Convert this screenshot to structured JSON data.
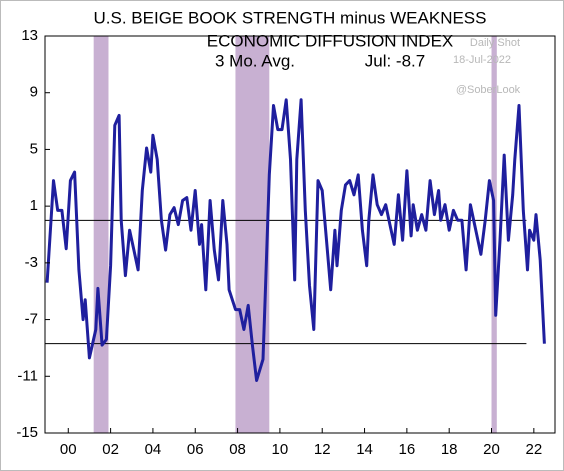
{
  "chart_data": {
    "type": "line",
    "title": "U.S. BEIGE BOOK STRENGTH minus WEAKNESS",
    "subtitle": "ECONOMIC DIFFUSION INDEX",
    "annotations": [
      "3 Mo. Avg.",
      "Jul: -8.7",
      "Daily Shot",
      "18-Jul-2022",
      "@SoberLook"
    ],
    "x": [
      1999.0,
      1999.3,
      1999.5,
      1999.7,
      1999.9,
      2000.1,
      2000.3,
      2000.5,
      2000.7,
      2000.8,
      2001.0,
      2001.3,
      2001.4,
      2001.6,
      2001.8,
      2002.0,
      2002.2,
      2002.4,
      2002.5,
      2002.7,
      2002.9,
      2003.1,
      2003.3,
      2003.5,
      2003.7,
      2003.9,
      2004.0,
      2004.2,
      2004.4,
      2004.6,
      2004.8,
      2005.0,
      2005.2,
      2005.4,
      2005.6,
      2005.8,
      2006.0,
      2006.2,
      2006.3,
      2006.5,
      2006.7,
      2006.9,
      2007.1,
      2007.3,
      2007.5,
      2007.6,
      2007.9,
      2008.1,
      2008.3,
      2008.5,
      2008.7,
      2008.9,
      2009.2,
      2009.3,
      2009.5,
      2009.7,
      2009.9,
      2010.1,
      2010.3,
      2010.5,
      2010.7,
      2010.8,
      2011.0,
      2011.2,
      2011.4,
      2011.6,
      2011.8,
      2012.0,
      2012.2,
      2012.4,
      2012.6,
      2012.7,
      2012.9,
      2013.1,
      2013.3,
      2013.5,
      2013.7,
      2013.9,
      2014.1,
      2014.2,
      2014.4,
      2014.6,
      2014.8,
      2015.0,
      2015.2,
      2015.4,
      2015.6,
      2015.8,
      2016.0,
      2016.2,
      2016.3,
      2016.5,
      2016.7,
      2016.9,
      2017.1,
      2017.3,
      2017.5,
      2017.6,
      2017.8,
      2018.0,
      2018.2,
      2018.4,
      2018.6,
      2018.8,
      2019.0,
      2019.2,
      2019.3,
      2019.5,
      2019.7,
      2019.9,
      2020.1,
      2020.2,
      2020.4,
      2020.6,
      2020.8,
      2021.0,
      2021.1,
      2021.3,
      2021.5,
      2021.7,
      2021.8,
      2022.0,
      2022.1,
      2022.3,
      2022.5
    ],
    "series": [
      {
        "name": "Strength minus Weakness",
        "color": "#1f1f9e",
        "values": [
          -4.4,
          2.8,
          0.7,
          0.7,
          -2,
          2.8,
          3.4,
          -3.5,
          -7,
          -5.6,
          -9.7,
          -7.7,
          -4.8,
          -8.8,
          -8.4,
          -3.2,
          6.7,
          7.4,
          0,
          -3.9,
          -0.7,
          -2.1,
          -3.5,
          2.1,
          5.1,
          3.4,
          6,
          4.3,
          0,
          -2.1,
          0.4,
          0.9,
          -0.3,
          1.4,
          1.6,
          -0.7,
          2.1,
          -1.7,
          -0.3,
          -4.9,
          1.4,
          -2.1,
          -4.2,
          1.4,
          -1.7,
          -4.9,
          -6.3,
          -6.3,
          -7.7,
          -6,
          -8.8,
          -11.3,
          -9.8,
          -5.6,
          3.2,
          8.1,
          6.4,
          6.4,
          8.5,
          4.3,
          -4.2,
          4.3,
          8.5,
          0.7,
          -4.6,
          -7.7,
          2.8,
          2.1,
          -1.4,
          -4.9,
          -0.7,
          -3.2,
          0.7,
          2.5,
          2.8,
          1.8,
          3.2,
          -0.7,
          -3.2,
          0,
          3.2,
          1.1,
          0.4,
          1.1,
          -0.3,
          -1.7,
          1.8,
          -1.4,
          3.5,
          -1.1,
          1.1,
          -0.7,
          0.4,
          -0.7,
          2.8,
          0.4,
          2.1,
          0,
          1.1,
          -0.7,
          0.7,
          0,
          0,
          -3.5,
          1.1,
          -0.3,
          -1,
          -2.4,
          0,
          2.8,
          1.4,
          -6.7,
          -1.4,
          4.6,
          -1.4,
          1.8,
          4.3,
          8.1,
          0.7,
          -3.5,
          -0.7,
          -1.4,
          0.4,
          -2.8,
          -8.7
        ]
      }
    ],
    "shaded_ranges": [
      [
        2001.2,
        2001.9
      ],
      [
        2007.9,
        2009.5
      ],
      [
        2020.0,
        2020.25
      ]
    ],
    "shade_color": "#c8b0d2",
    "reference_lines": [
      0,
      -8.7
    ],
    "xlim": [
      1998.9,
      2023.0
    ],
    "xticks": [
      {
        "value": 2000,
        "label": "00"
      },
      {
        "value": 2002,
        "label": "02"
      },
      {
        "value": 2004,
        "label": "04"
      },
      {
        "value": 2006,
        "label": "06"
      },
      {
        "value": 2008,
        "label": "08"
      },
      {
        "value": 2010,
        "label": "10"
      },
      {
        "value": 2012,
        "label": "12"
      },
      {
        "value": 2014,
        "label": "14"
      },
      {
        "value": 2016,
        "label": "16"
      },
      {
        "value": 2018,
        "label": "18"
      },
      {
        "value": 2020,
        "label": "20"
      },
      {
        "value": 2022,
        "label": "22"
      }
    ],
    "ylim": [
      -15,
      13
    ],
    "yticks": [
      -15,
      -11,
      -7,
      -3,
      1,
      5,
      9,
      13
    ]
  }
}
